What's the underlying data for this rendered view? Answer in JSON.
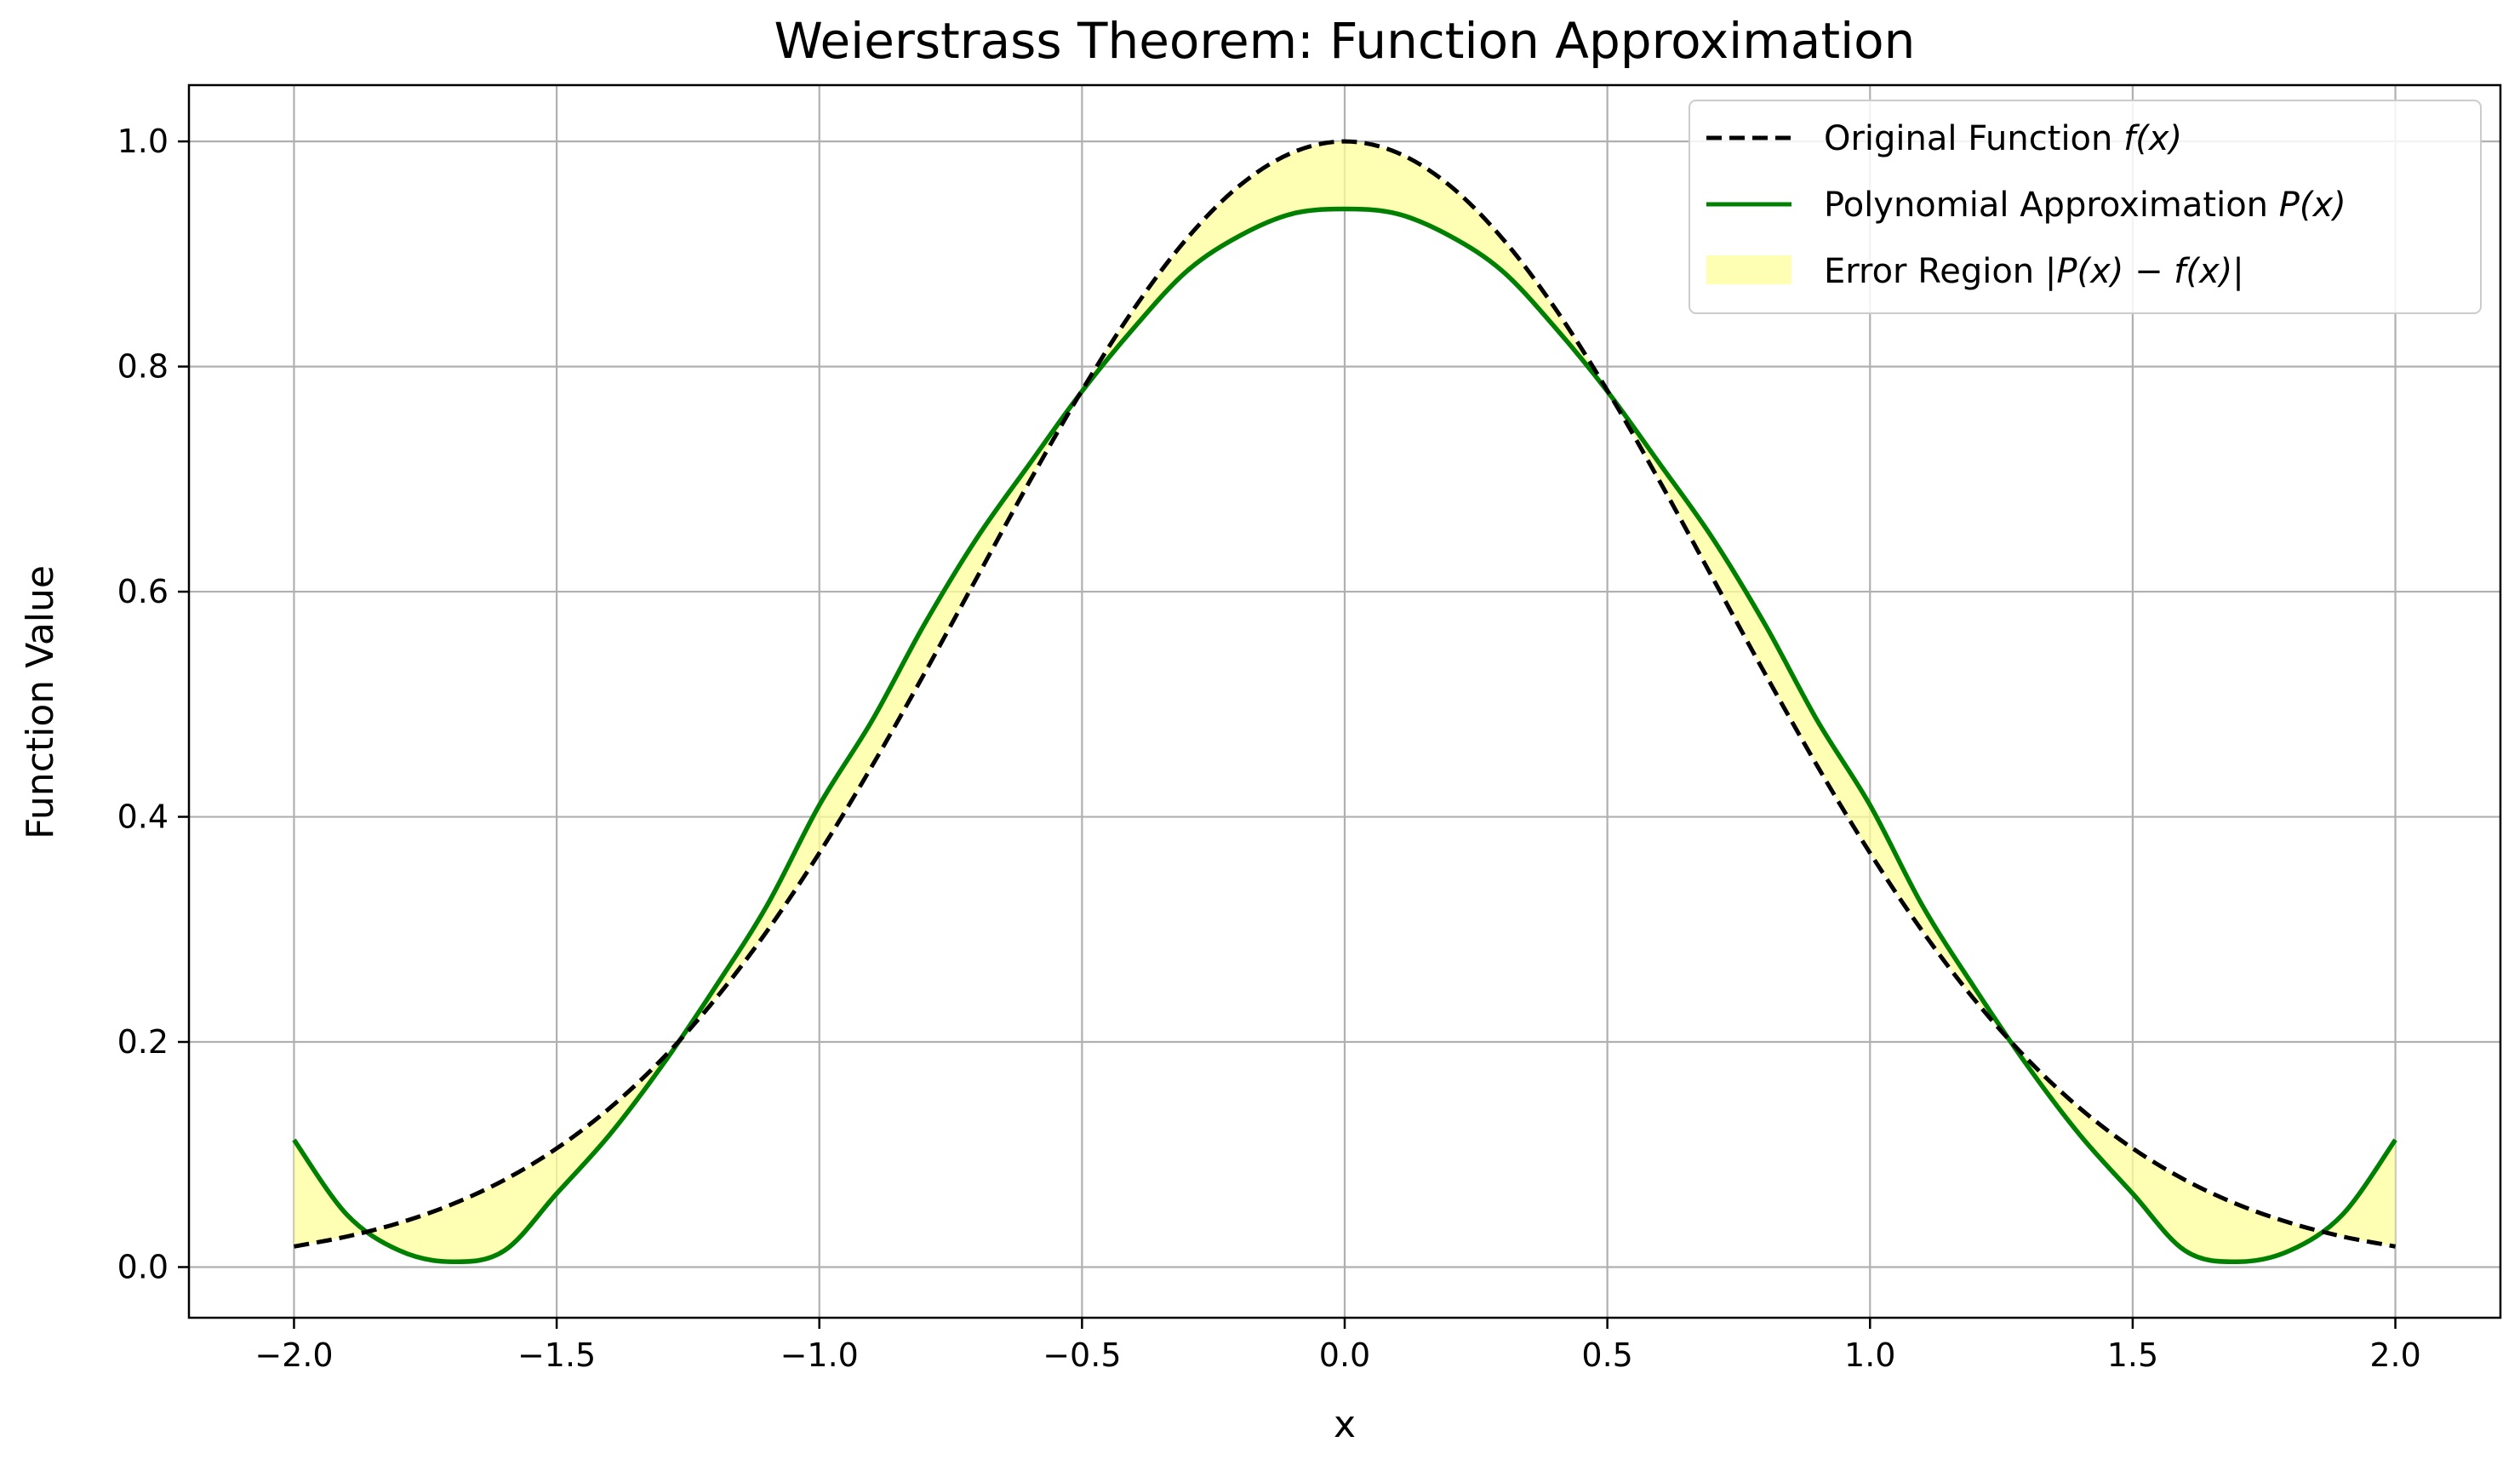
{
  "chart_data": {
    "type": "line",
    "title": "Weierstrass Theorem: Function Approximation",
    "xlabel": "x",
    "ylabel": "Function Value",
    "xlim": [
      -2.2,
      2.2
    ],
    "ylim": [
      -0.045,
      1.05
    ],
    "grid": true,
    "legend_position": "top-right",
    "x_ticks": [
      -2.0,
      -1.5,
      -1.0,
      -0.5,
      0.0,
      0.5,
      1.0,
      1.5,
      2.0
    ],
    "x_tick_labels": [
      "−2.0",
      "−1.5",
      "−1.0",
      "−0.5",
      "0.0",
      "0.5",
      "1.0",
      "1.5",
      "2.0"
    ],
    "y_ticks": [
      0.0,
      0.2,
      0.4,
      0.6,
      0.8,
      1.0
    ],
    "y_tick_labels": [
      "0.0",
      "0.2",
      "0.4",
      "0.6",
      "0.8",
      "1.0"
    ],
    "x": [
      -2.0,
      -1.9,
      -1.8,
      -1.7,
      -1.6,
      -1.5,
      -1.4,
      -1.3,
      -1.2,
      -1.1,
      -1.0,
      -0.9,
      -0.8,
      -0.7,
      -0.6,
      -0.5,
      -0.4,
      -0.3,
      -0.2,
      -0.1,
      0.0,
      0.1,
      0.2,
      0.3,
      0.4,
      0.5,
      0.6,
      0.7,
      0.8,
      0.9,
      1.0,
      1.1,
      1.2,
      1.3,
      1.4,
      1.5,
      1.6,
      1.7,
      1.8,
      1.9,
      2.0
    ],
    "series": [
      {
        "name": "Original Function",
        "legend_label": {
          "plain": "Original Function ",
          "math": "f(x)"
        },
        "style": "dashed",
        "color": "#000000",
        "values": [
          0.0183,
          0.0271,
          0.0392,
          0.0556,
          0.0773,
          0.1054,
          0.1409,
          0.1845,
          0.2369,
          0.2982,
          0.3679,
          0.4449,
          0.5273,
          0.6126,
          0.6977,
          0.7788,
          0.8521,
          0.9139,
          0.9608,
          0.99,
          1.0,
          0.99,
          0.9608,
          0.9139,
          0.8521,
          0.7788,
          0.6977,
          0.6126,
          0.5273,
          0.4449,
          0.3679,
          0.2982,
          0.2369,
          0.1845,
          0.1409,
          0.1054,
          0.0773,
          0.0556,
          0.0392,
          0.0271,
          0.0183
        ]
      },
      {
        "name": "Polynomial Approximation",
        "legend_label": {
          "plain": "Polynomial Approximation ",
          "math": "P(x)"
        },
        "style": "solid",
        "color": "#008000",
        "values": [
          0.113,
          0.0469,
          0.0148,
          0.0047,
          0.0145,
          0.0653,
          0.1171,
          0.1786,
          0.2474,
          0.3209,
          0.4104,
          0.4852,
          0.571,
          0.6477,
          0.7134,
          0.778,
          0.835,
          0.8849,
          0.9161,
          0.9357,
          0.94,
          0.9357,
          0.9161,
          0.8849,
          0.835,
          0.778,
          0.7134,
          0.6477,
          0.571,
          0.4852,
          0.4104,
          0.3209,
          0.2474,
          0.1786,
          0.1171,
          0.0653,
          0.0145,
          0.0047,
          0.0148,
          0.0469,
          0.113
        ]
      }
    ],
    "fill_between": {
      "name": "Error Region",
      "legend_label": {
        "plain": "Error Region ",
        "math": "|P(x) − f(x)|"
      },
      "color": "#ffff99",
      "opacity": 0.75
    }
  },
  "colors": {
    "grid": "#b0b0b0",
    "axes": "#000000",
    "legend_border": "#cccccc",
    "fill": "#ffff99",
    "original": "#000000",
    "poly": "#008000"
  }
}
